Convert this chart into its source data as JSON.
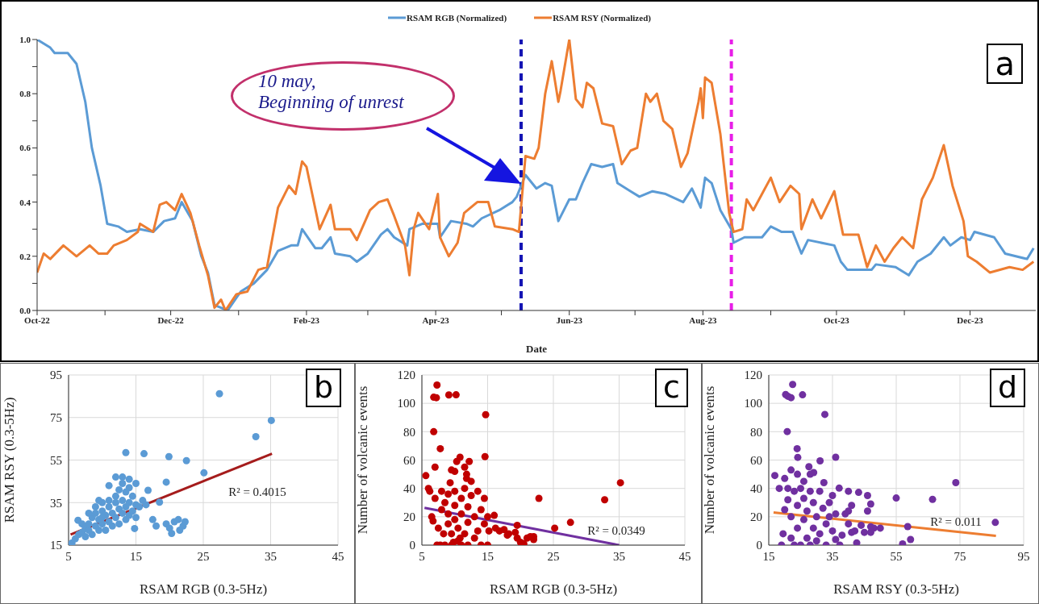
{
  "chart_data": [
    {
      "type": "line",
      "xlabel": "Date",
      "legend": "top",
      "marker": "none",
      "line_style": "solid",
      "grid": false,
      "xlim": [
        "2022-10-01",
        "2023-12-31"
      ],
      "xticks": [
        {
          "value": "2022-10-01",
          "label": "Oct-22"
        },
        {
          "value": "2022-11-01",
          "label": null
        },
        {
          "value": "2022-12-01",
          "label": "Dec-22"
        },
        {
          "value": "2023-01-01",
          "label": null
        },
        {
          "value": "2023-02-01",
          "label": "Feb-23"
        },
        {
          "value": "2023-03-01",
          "label": null
        },
        {
          "value": "2023-04-01",
          "label": "Apr-23"
        },
        {
          "value": "2023-05-01",
          "label": null
        },
        {
          "value": "2023-06-01",
          "label": "Jun-23"
        },
        {
          "value": "2023-07-01",
          "label": null
        },
        {
          "value": "2023-08-01",
          "label": "Aug-23"
        },
        {
          "value": "2023-09-01",
          "label": null
        },
        {
          "value": "2023-10-01",
          "label": "Oct-23"
        },
        {
          "value": "2023-11-01",
          "label": null
        },
        {
          "value": "2023-12-01",
          "label": "Dec-23"
        }
      ],
      "ylim": [
        0,
        1
      ],
      "yticks": [
        {
          "value": 0,
          "label": "0.0"
        },
        {
          "value": 0.1,
          "label": null
        },
        0.2,
        {
          "value": 0.3,
          "label": null
        },
        0.4,
        {
          "value": 0.5,
          "label": null
        },
        0.6,
        {
          "value": 0.7,
          "label": null
        },
        0.8,
        {
          "value": 0.9,
          "label": null
        },
        {
          "value": 1,
          "label": "1.0"
        }
      ],
      "series": [
        {
          "name": "RSAM RGB (Normalized)",
          "color": "#5b9bd5",
          "x": [
            "2022-10-01",
            "2022-10-07",
            "2022-10-09",
            "2022-10-15",
            "2022-10-19",
            "2022-10-23",
            "2022-10-26",
            "2022-10-30",
            "2022-11-02",
            "2022-11-07",
            "2022-11-11",
            "2022-11-17",
            "2022-11-23",
            "2022-11-28",
            "2022-12-03",
            "2022-12-06",
            "2022-12-11",
            "2022-12-15",
            "2022-12-18",
            "2022-12-21",
            "2022-12-24",
            "2022-12-27",
            "2023-01-02",
            "2023-01-08",
            "2023-01-14",
            "2023-01-19",
            "2023-01-25",
            "2023-01-28",
            "2023-01-30",
            "2023-02-05",
            "2023-02-08",
            "2023-02-12",
            "2023-02-14",
            "2023-02-21",
            "2023-02-24",
            "2023-03-01",
            "2023-03-07",
            "2023-03-10",
            "2023-03-13",
            "2023-03-19",
            "2023-03-20",
            "2023-03-26",
            "2023-04-02",
            "2023-04-03",
            "2023-04-08",
            "2023-04-15",
            "2023-04-18",
            "2023-04-22",
            "2023-04-30",
            "2023-05-06",
            "2023-05-08",
            "2023-05-12",
            "2023-05-17",
            "2023-05-21",
            "2023-05-24",
            "2023-05-27",
            "2023-06-01",
            "2023-06-04",
            "2023-06-07",
            "2023-06-11",
            "2023-06-16",
            "2023-06-21",
            "2023-06-23",
            "2023-06-29",
            "2023-07-03",
            "2023-07-09",
            "2023-07-15",
            "2023-07-23",
            "2023-07-27",
            "2023-07-31",
            "2023-08-02",
            "2023-08-05",
            "2023-08-09",
            "2023-08-14",
            "2023-08-15",
            "2023-08-20",
            "2023-08-28",
            "2023-09-01",
            "2023-09-06",
            "2023-09-11",
            "2023-09-15",
            "2023-09-18",
            "2023-09-30",
            "2023-10-03",
            "2023-10-06",
            "2023-10-17",
            "2023-10-19",
            "2023-10-28",
            "2023-11-03",
            "2023-11-07",
            "2023-11-13",
            "2023-11-19",
            "2023-11-22",
            "2023-11-27",
            "2023-12-01",
            "2023-12-03",
            "2023-12-12",
            "2023-12-17",
            "2023-12-27",
            "2023-12-30"
          ],
          "values": [
            1.0,
            0.97,
            0.95,
            0.95,
            0.91,
            0.77,
            0.6,
            0.46,
            0.32,
            0.31,
            0.29,
            0.3,
            0.29,
            0.33,
            0.34,
            0.4,
            0.33,
            0.2,
            0.14,
            0.02,
            0.01,
            0.0,
            0.07,
            0.1,
            0.15,
            0.22,
            0.24,
            0.24,
            0.3,
            0.23,
            0.23,
            0.27,
            0.21,
            0.2,
            0.18,
            0.21,
            0.28,
            0.3,
            0.27,
            0.24,
            0.3,
            0.32,
            0.32,
            0.27,
            0.33,
            0.32,
            0.31,
            0.34,
            0.37,
            0.4,
            0.42,
            0.5,
            0.45,
            0.47,
            0.46,
            0.33,
            0.41,
            0.41,
            0.47,
            0.54,
            0.53,
            0.54,
            0.47,
            0.44,
            0.42,
            0.44,
            0.43,
            0.4,
            0.45,
            0.38,
            0.49,
            0.47,
            0.37,
            0.3,
            0.25,
            0.27,
            0.27,
            0.31,
            0.29,
            0.29,
            0.21,
            0.26,
            0.24,
            0.18,
            0.15,
            0.15,
            0.17,
            0.16,
            0.13,
            0.18,
            0.21,
            0.27,
            0.24,
            0.27,
            0.26,
            0.29,
            0.27,
            0.21,
            0.19,
            0.23
          ]
        },
        {
          "name": "RSAM RSY (Normalized)",
          "color": "#ed7d31",
          "x": [
            "2022-10-01",
            "2022-10-04",
            "2022-10-07",
            "2022-10-13",
            "2022-10-19",
            "2022-10-25",
            "2022-10-29",
            "2022-11-02",
            "2022-11-05",
            "2022-11-11",
            "2022-11-16",
            "2022-11-17",
            "2022-11-23",
            "2022-11-26",
            "2022-11-29",
            "2022-12-03",
            "2022-12-06",
            "2022-12-10",
            "2022-12-14",
            "2022-12-18",
            "2022-12-21",
            "2022-12-24",
            "2022-12-26",
            "2022-12-31",
            "2023-01-05",
            "2023-01-10",
            "2023-01-14",
            "2023-01-19",
            "2023-01-24",
            "2023-01-27",
            "2023-01-30",
            "2023-02-01",
            "2023-02-07",
            "2023-02-12",
            "2023-02-14",
            "2023-02-21",
            "2023-02-24",
            "2023-03-02",
            "2023-03-06",
            "2023-03-10",
            "2023-03-13",
            "2023-03-18",
            "2023-03-20",
            "2023-03-22",
            "2023-03-24",
            "2023-03-29",
            "2023-04-02",
            "2023-04-03",
            "2023-04-07",
            "2023-04-11",
            "2023-04-14",
            "2023-04-20",
            "2023-04-25",
            "2023-04-28",
            "2023-05-06",
            "2023-05-09",
            "2023-05-12",
            "2023-05-16",
            "2023-05-18",
            "2023-05-21",
            "2023-05-24",
            "2023-05-27",
            "2023-05-28",
            "2023-06-01",
            "2023-06-04",
            "2023-06-07",
            "2023-06-09",
            "2023-06-12",
            "2023-06-16",
            "2023-06-21",
            "2023-06-25",
            "2023-06-29",
            "2023-07-02",
            "2023-07-06",
            "2023-07-08",
            "2023-07-11",
            "2023-07-14",
            "2023-07-18",
            "2023-07-22",
            "2023-07-25",
            "2023-07-30",
            "2023-07-31",
            "2023-08-01",
            "2023-08-02",
            "2023-08-05",
            "2023-08-09",
            "2023-08-13",
            "2023-08-15",
            "2023-08-19",
            "2023-08-21",
            "2023-08-24",
            "2023-08-28",
            "2023-09-01",
            "2023-09-05",
            "2023-09-10",
            "2023-09-14",
            "2023-09-15",
            "2023-09-20",
            "2023-09-24",
            "2023-09-30",
            "2023-10-04",
            "2023-10-11",
            "2023-10-15",
            "2023-10-19",
            "2023-10-23",
            "2023-10-27",
            "2023-10-31",
            "2023-11-05",
            "2023-11-09",
            "2023-11-14",
            "2023-11-19",
            "2023-11-23",
            "2023-11-28",
            "2023-11-30",
            "2023-12-04",
            "2023-12-10",
            "2023-12-19",
            "2023-12-25",
            "2023-12-30"
          ],
          "values": [
            0.14,
            0.21,
            0.19,
            0.24,
            0.2,
            0.24,
            0.21,
            0.21,
            0.24,
            0.26,
            0.29,
            0.32,
            0.29,
            0.39,
            0.4,
            0.37,
            0.43,
            0.36,
            0.24,
            0.13,
            0.01,
            0.04,
            0.0,
            0.06,
            0.07,
            0.15,
            0.16,
            0.38,
            0.46,
            0.43,
            0.55,
            0.53,
            0.3,
            0.39,
            0.3,
            0.3,
            0.26,
            0.37,
            0.4,
            0.41,
            0.35,
            0.24,
            0.13,
            0.3,
            0.36,
            0.3,
            0.43,
            0.27,
            0.2,
            0.25,
            0.36,
            0.4,
            0.4,
            0.31,
            0.3,
            0.29,
            0.57,
            0.56,
            0.6,
            0.8,
            0.92,
            0.77,
            0.81,
            1.0,
            0.78,
            0.75,
            0.84,
            0.82,
            0.69,
            0.68,
            0.54,
            0.59,
            0.6,
            0.8,
            0.77,
            0.8,
            0.7,
            0.67,
            0.53,
            0.58,
            0.77,
            0.82,
            0.71,
            0.86,
            0.84,
            0.65,
            0.36,
            0.29,
            0.3,
            0.41,
            0.37,
            0.43,
            0.49,
            0.4,
            0.46,
            0.43,
            0.3,
            0.41,
            0.34,
            0.44,
            0.28,
            0.28,
            0.16,
            0.24,
            0.18,
            0.23,
            0.27,
            0.23,
            0.41,
            0.49,
            0.61,
            0.46,
            0.33,
            0.2,
            0.18,
            0.14,
            0.16,
            0.15,
            0.18
          ]
        }
      ],
      "ref_lines": [
        {
          "axis": "x",
          "value": "2023-05-10",
          "label": null,
          "color": "#1414b4",
          "line_style": "dashed"
        },
        {
          "axis": "x",
          "value": "2023-08-14",
          "label": null,
          "color": "#e81ee8",
          "line_style": "dashed"
        }
      ],
      "annotations": [
        "10 may,\nBeginning of unrest",
        "a"
      ]
    },
    {
      "type": "scatter",
      "xlabel": "RSAM RGB (0.3-5Hz)",
      "ylabel": "RSAM RSY (0.3-5Hz)",
      "grid": true,
      "marker": "circle",
      "xlim": [
        5,
        45
      ],
      "xticks": [
        5,
        15,
        25,
        35,
        45
      ],
      "ylim": [
        15,
        95
      ],
      "yticks": [
        15,
        35,
        55,
        75,
        95
      ],
      "series": [
        {
          "type": "scatter",
          "color": "#5b9bd5",
          "x": [
            27.4,
            35.1,
            32.8,
            13.5,
            16.2,
            19.9,
            22.5,
            25.1,
            19.5,
            16.8,
            18.5,
            6.4,
            14.8,
            17.5,
            18,
            20,
            20.3,
            20.7,
            21.3,
            22,
            21.5,
            19.5,
            22.3,
            5.5,
            6,
            6.5,
            7,
            7.5,
            7.5,
            8,
            8,
            8.5,
            8.5,
            9,
            9,
            9,
            9.5,
            9.5,
            10,
            10,
            10,
            10.5,
            10.5,
            11,
            11,
            11,
            11,
            11.5,
            11.5,
            12,
            12,
            12,
            12,
            12.5,
            12.5,
            13,
            13,
            13,
            13,
            13.5,
            13.5,
            13.5,
            14,
            14,
            14,
            14.5,
            14.5,
            15,
            15,
            15,
            15.5,
            16,
            16.5,
            14,
            10,
            9.5,
            12.5,
            8,
            7
          ],
          "values": [
            86.2,
            73.6,
            66,
            58.5,
            58,
            56.6,
            54.7,
            49,
            44.6,
            40.8,
            35.2,
            26.7,
            22.8,
            27,
            24,
            23,
            20.5,
            26,
            27,
            24,
            22,
            25,
            26,
            16,
            18,
            20,
            21,
            19,
            23,
            22,
            25,
            20,
            28,
            24,
            30,
            33,
            22,
            27,
            25,
            31,
            35,
            22,
            29,
            26,
            33,
            36,
            43,
            24,
            30,
            28,
            35,
            38,
            47,
            25,
            32,
            30,
            36,
            44,
            47,
            27,
            33,
            40,
            29,
            35,
            46,
            31,
            38,
            28,
            34,
            44,
            33,
            36,
            34,
            42,
            28,
            36,
            41,
            30,
            25
          ]
        },
        {
          "type": "line",
          "color": "#a51c1c",
          "marker": "none",
          "x": [
            5.3,
            35.2
          ],
          "values": [
            20,
            58
          ]
        }
      ],
      "annotations": [
        "R² = 0.4015",
        "b"
      ]
    },
    {
      "type": "scatter",
      "xlabel": "RSAM RGB (0.3-5Hz)",
      "ylabel": "Number of volcanic events",
      "grid": true,
      "marker": "circle",
      "xlim": [
        5,
        45
      ],
      "xticks": [
        5,
        15,
        25,
        35,
        45
      ],
      "ylim": [
        0,
        120
      ],
      "yticks": [
        0,
        20,
        40,
        60,
        80,
        100,
        120
      ],
      "series": [
        {
          "type": "scatter",
          "color": "#c00000",
          "x": [
            7.3,
            6.8,
            7.2,
            9.1,
            10.2,
            14.7,
            6.8,
            7.8,
            7.0,
            5.6,
            6.0,
            6.2,
            9.5,
            10,
            10.8,
            10.3,
            11.5,
            11.8,
            12.2,
            14.6,
            9.3,
            22.8,
            25.2,
            27.6,
            32.8,
            35.2,
            16,
            16.2,
            16.8,
            17.5,
            18.2,
            19.5,
            19.2,
            19.5,
            20,
            20.5,
            21,
            21.5,
            22,
            22,
            18,
            6.5,
            6.7,
            7,
            7.3,
            7.5,
            7.8,
            8,
            8,
            8.3,
            8.5,
            8.5,
            9,
            9,
            9,
            9.5,
            9.5,
            10,
            10,
            10,
            10.5,
            10.5,
            11,
            11,
            11,
            11.5,
            11.5,
            12,
            12,
            12,
            12.5,
            13,
            13,
            13.5,
            13.5,
            14,
            14,
            14.5,
            14.5,
            15,
            15,
            15.2,
            12.5,
            11.8,
            10.8,
            9.8
          ],
          "values": [
            112.9,
            104.3,
            104,
            105.9,
            106,
            92,
            80,
            68,
            55,
            49,
            40,
            38,
            53,
            52,
            62,
            59,
            55,
            50,
            59,
            62.4,
            44,
            33,
            12,
            16,
            32,
            44,
            21,
            12,
            10,
            11,
            8,
            14,
            9,
            5,
            2,
            1,
            5,
            6,
            4,
            6,
            7,
            20,
            17,
            33,
            0,
            12,
            0,
            25,
            38,
            8,
            0,
            30,
            15,
            22,
            36,
            0,
            8,
            18,
            28,
            38,
            3,
            12,
            0,
            22,
            33,
            8,
            40,
            0,
            16,
            27,
            35,
            5,
            20,
            10,
            38,
            0,
            25,
            15,
            33,
            0,
            20,
            10,
            45,
            47,
            5,
            2
          ]
        },
        {
          "type": "line",
          "color": "#7030a0",
          "marker": "none",
          "x": [
            5.4,
            35
          ],
          "values": [
            26.3,
            0
          ]
        }
      ],
      "annotations": [
        "R² = 0.0349",
        "c"
      ]
    },
    {
      "type": "scatter",
      "xlabel": "RSAM RSY (0.3-5Hz)",
      "ylabel": "Number of volcanic events",
      "grid": true,
      "marker": "circle",
      "xlim": [
        15,
        95
      ],
      "xticks": [
        15,
        35,
        55,
        75,
        95
      ],
      "ylim": [
        0,
        120
      ],
      "yticks": [
        0,
        20,
        40,
        60,
        80,
        100,
        120
      ],
      "series": [
        {
          "type": "scatter",
          "color": "#7030a0",
          "x": [
            22.5,
            20.3,
            21,
            22,
            25.6,
            32.6,
            20.8,
            23.9,
            24.1,
            31.1,
            36,
            16.9,
            27.6,
            29.1,
            18.3,
            20,
            22,
            32.3,
            37.1,
            40,
            43.2,
            46,
            47,
            46,
            55,
            66.4,
            73.7,
            86.1,
            58.6,
            57,
            59.5,
            42.6,
            37.3,
            19,
            19.5,
            44,
            45,
            47,
            48,
            50,
            47,
            40,
            41,
            39,
            40,
            41,
            38,
            36,
            42,
            20,
            21,
            22,
            22,
            23,
            23,
            24,
            24,
            25,
            25,
            26,
            26,
            27,
            27,
            28,
            28,
            29,
            29,
            30,
            30,
            31,
            31,
            32,
            33,
            33,
            34,
            34,
            35,
            35,
            36,
            26,
            28,
            24,
            21
          ],
          "values": [
            113.3,
            106.2,
            105,
            104,
            106,
            92.2,
            80.1,
            68,
            61.9,
            59.4,
            62,
            49.1,
            55.3,
            51.2,
            40,
            47,
            53,
            44.1,
            40.2,
            38,
            37.2,
            35,
            29,
            24,
            33.2,
            32.3,
            44.1,
            16,
            13.1,
            0.9,
            4,
            1.6,
            0,
            0,
            8,
            14,
            9,
            9,
            12,
            12,
            13,
            24,
            28,
            22,
            15,
            9,
            7,
            4,
            10,
            25,
            32,
            20,
            5,
            0,
            38,
            12,
            28,
            0,
            40,
            18,
            33,
            5,
            24,
            0,
            38,
            12,
            30,
            20,
            3,
            38,
            8,
            26,
            0,
            15,
            30,
            20,
            10,
            35,
            22,
            45,
            50,
            50,
            40
          ]
        },
        {
          "type": "line",
          "color": "#ed7d31",
          "marker": "none",
          "x": [
            16.5,
            86.3
          ],
          "values": [
            23,
            6.6
          ]
        }
      ],
      "annotations": [
        "R² = 0.011",
        "d"
      ]
    }
  ]
}
